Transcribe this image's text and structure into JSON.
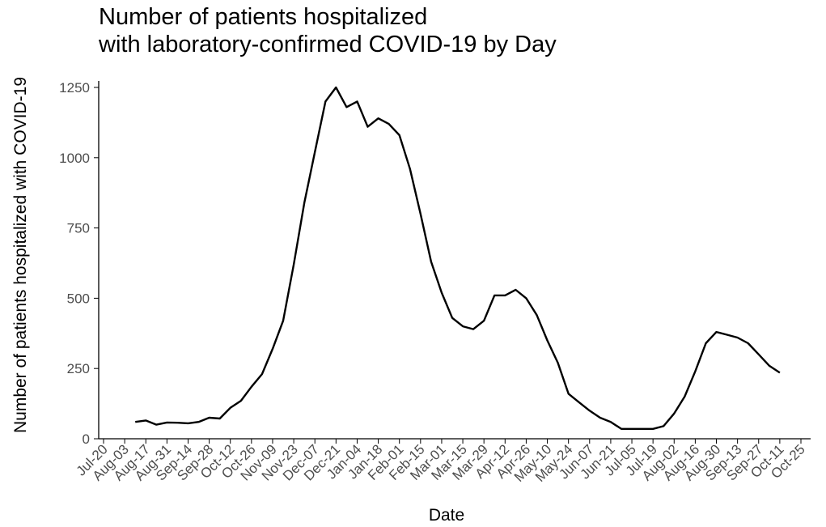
{
  "chart_data": {
    "type": "line",
    "title": [
      "Number of patients hospitalized",
      "with laboratory-confirmed COVID-19 by Day"
    ],
    "xlabel": "Date",
    "ylabel": "Number of patients hospitalized with COVID-19",
    "categories": [
      "Jul-20",
      null,
      "Aug-03",
      null,
      "Aug-17",
      null,
      "Aug-31",
      null,
      "Sep-14",
      null,
      "Sep-28",
      null,
      "Oct-12",
      null,
      "Oct-26",
      null,
      "Nov-09",
      null,
      "Nov-23",
      null,
      "Dec-07",
      null,
      "Dec-21",
      null,
      "Jan-04",
      null,
      "Jan-18",
      null,
      "Feb-01",
      null,
      "Feb-15",
      null,
      "Mar-01",
      null,
      "Mar-15",
      null,
      "Mar-29",
      null,
      "Apr-12",
      null,
      "Apr-26",
      null,
      "May-10",
      null,
      "May-24",
      null,
      "Jun-07",
      null,
      "Jun-21",
      null,
      "Jul-05",
      null,
      "Jul-19",
      null,
      "Aug-02",
      null,
      "Aug-16",
      null,
      "Aug-30",
      null,
      "Sep-13",
      null,
      "Sep-27",
      null,
      "Oct-11",
      null,
      "Oct-25"
    ],
    "values": [
      null,
      null,
      null,
      60,
      65,
      50,
      58,
      57,
      55,
      60,
      75,
      72,
      110,
      135,
      185,
      230,
      320,
      420,
      620,
      840,
      1020,
      1200,
      1250,
      1180,
      1200,
      1110,
      1140,
      1120,
      1080,
      960,
      800,
      630,
      520,
      430,
      400,
      390,
      420,
      510,
      510,
      530,
      500,
      440,
      350,
      270,
      160,
      130,
      100,
      75,
      60,
      35,
      35,
      35,
      35,
      45,
      90,
      150,
      240,
      340,
      380,
      370,
      360,
      340,
      300,
      260,
      235,
      null,
      null
    ],
    "color": "#000000",
    "ylim": [
      0,
      1250
    ],
    "yticks": [
      0,
      250,
      500,
      750,
      1000,
      1250
    ],
    "grid": false
  }
}
